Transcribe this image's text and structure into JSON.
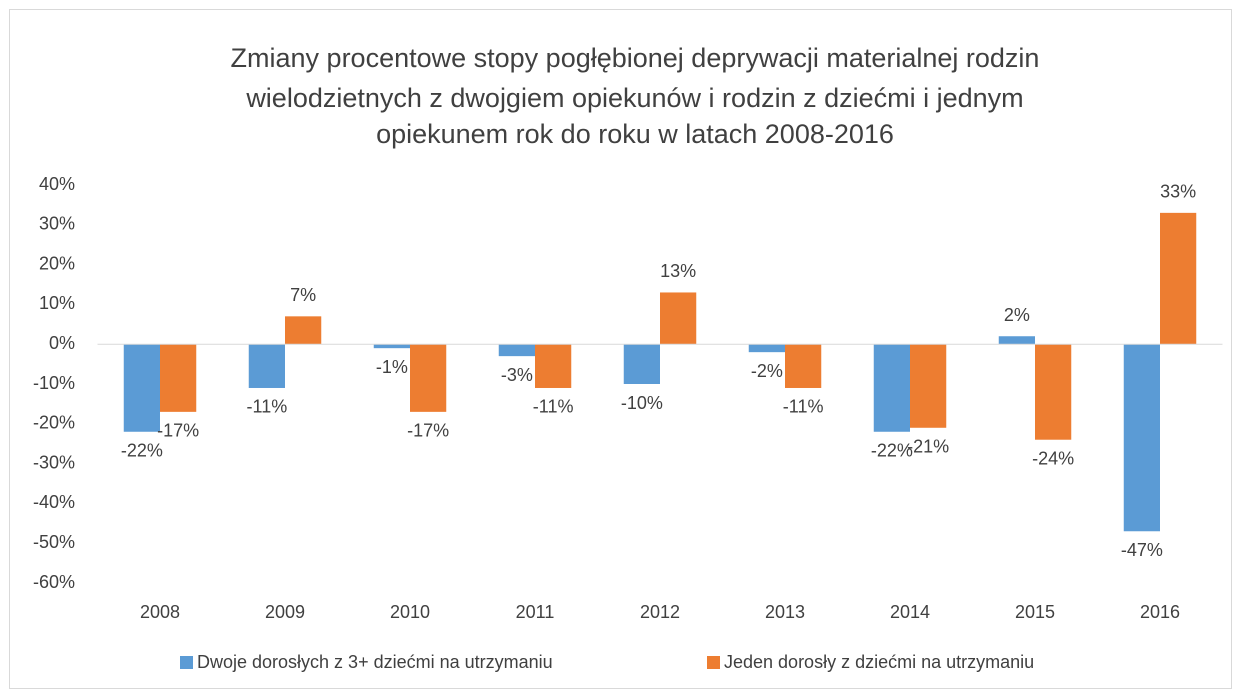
{
  "chart_data": {
    "type": "bar",
    "title": [
      "Zmiany procentowe stopy pogłębionej deprywacji materialnej rodzin",
      "wielodzietnych z dwojgiem opiekunów i rodzin z dziećmi i jednym",
      "opiekunem rok do roku w latach 2008-2016"
    ],
    "categories": [
      "2008",
      "2009",
      "2010",
      "2011",
      "2012",
      "2013",
      "2014",
      "2015",
      "2016"
    ],
    "series": [
      {
        "name": "Dwoje dorosłych z 3+ dziećmi na utrzymaniu",
        "color": "#5b9bd5",
        "values": [
          -22,
          -11,
          -1,
          -3,
          -10,
          -2,
          -22,
          2,
          -47
        ],
        "value_labels": [
          "-22%",
          "-11%",
          "-1%",
          "-3%",
          "-10%",
          "-2%",
          "-22%",
          "2%",
          "-47%"
        ]
      },
      {
        "name": "Jeden dorosły z dziećmi na utrzymaniu",
        "color": "#ed7d31",
        "values": [
          -17,
          7,
          -17,
          -11,
          13,
          -11,
          -21,
          -24,
          33
        ],
        "value_labels": [
          "-17%",
          "7%",
          "-17%",
          "-11%",
          "13%",
          "-11%",
          "-21%",
          "-24%",
          "33%"
        ]
      }
    ],
    "ylim": [
      -60,
      40
    ],
    "yticks": [
      {
        "value": -60,
        "label": "-60%"
      },
      {
        "value": -50,
        "label": "-50%"
      },
      {
        "value": -40,
        "label": "-40%"
      },
      {
        "value": -30,
        "label": "-30%"
      },
      {
        "value": -20,
        "label": "-20%"
      },
      {
        "value": -10,
        "label": "-10%"
      },
      {
        "value": 0,
        "label": "0%"
      },
      {
        "value": 10,
        "label": "10%"
      },
      {
        "value": 20,
        "label": "20%"
      },
      {
        "value": 30,
        "label": "30%"
      },
      {
        "value": 40,
        "label": "40%"
      }
    ],
    "grid": false,
    "legend": "bottom"
  }
}
